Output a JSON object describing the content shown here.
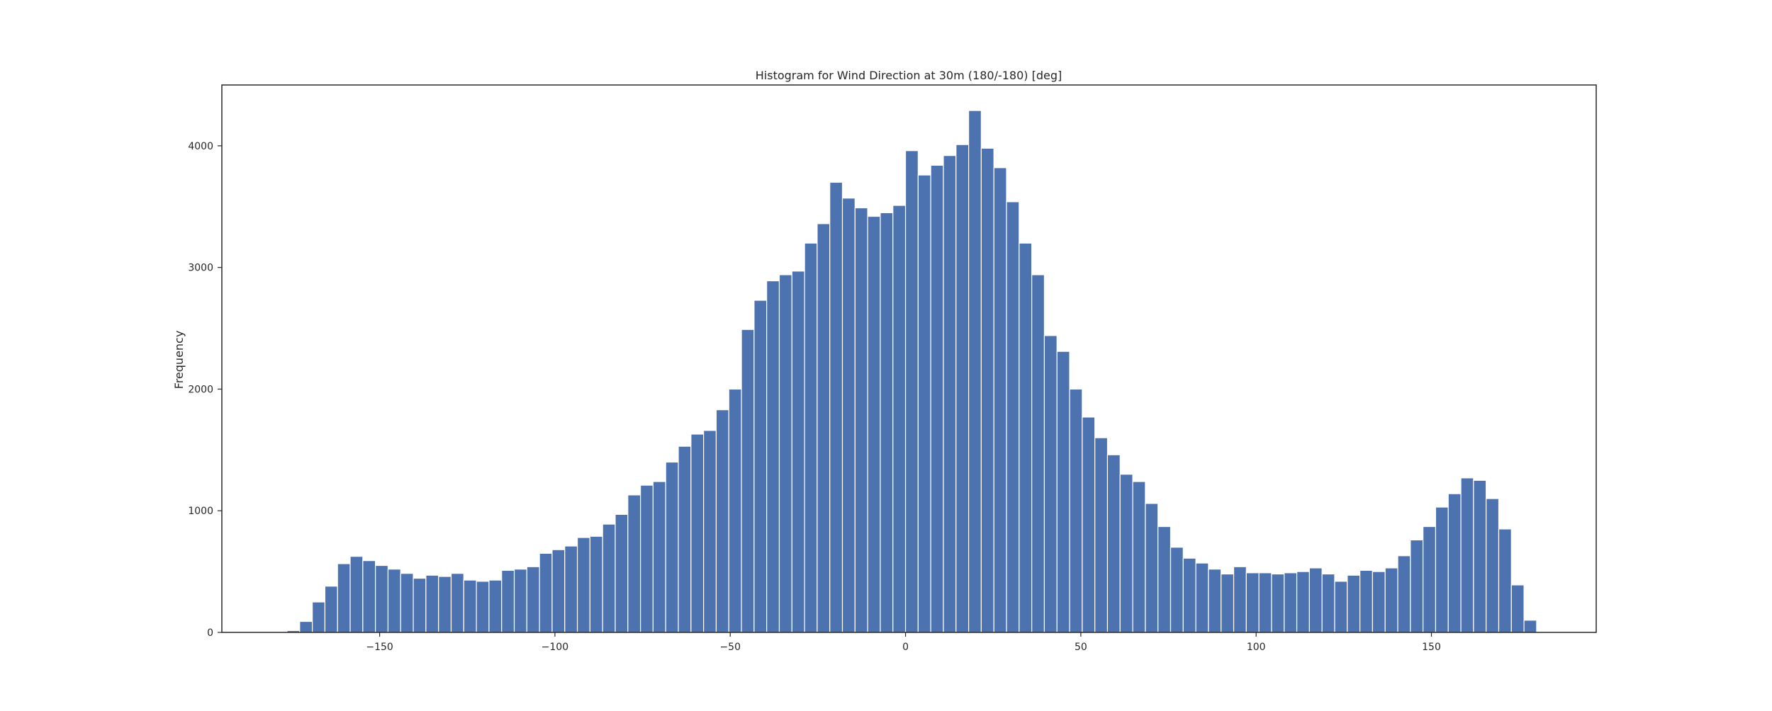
{
  "chart_data": {
    "type": "histogram",
    "title": "Histogram for Wind Direction at 30m (180/-180) [deg]",
    "xlabel": "",
    "ylabel": "Frequency",
    "xlim": [
      -195,
      197
    ],
    "ylim": [
      0,
      4500
    ],
    "x_ticks": [
      -150,
      -100,
      -50,
      0,
      50,
      100,
      150
    ],
    "x_tick_labels": [
      "−150",
      "−100",
      "−50",
      "0",
      "50",
      "100",
      "150"
    ],
    "y_ticks": [
      0,
      1000,
      2000,
      3000,
      4000
    ],
    "y_tick_labels": [
      "0",
      "1000",
      "2000",
      "3000",
      "4000"
    ],
    "bin_start": -180,
    "bin_width": 3.6,
    "grid": false,
    "legend": "none",
    "bar_color": "#4c72b0",
    "edge_color": "#ffffff",
    "values": [
      1,
      15,
      90,
      250,
      380,
      565,
      625,
      590,
      550,
      520,
      485,
      445,
      470,
      460,
      485,
      430,
      420,
      430,
      510,
      520,
      540,
      650,
      680,
      710,
      780,
      790,
      890,
      970,
      1130,
      1210,
      1240,
      1400,
      1530,
      1630,
      1660,
      1830,
      2000,
      2490,
      2730,
      2890,
      2940,
      2970,
      3200,
      3360,
      3700,
      3570,
      3490,
      3420,
      3450,
      3510,
      3960,
      3760,
      3840,
      3920,
      4010,
      4290,
      3980,
      3820,
      3540,
      3200,
      2940,
      2440,
      2310,
      2000,
      1770,
      1600,
      1460,
      1300,
      1240,
      1060,
      870,
      700,
      610,
      570,
      520,
      480,
      540,
      490,
      490,
      480,
      490,
      500,
      530,
      480,
      420,
      470,
      510,
      500,
      530,
      630,
      760,
      870,
      1030,
      1140,
      1270,
      1250,
      1100,
      850,
      390,
      100
    ]
  }
}
